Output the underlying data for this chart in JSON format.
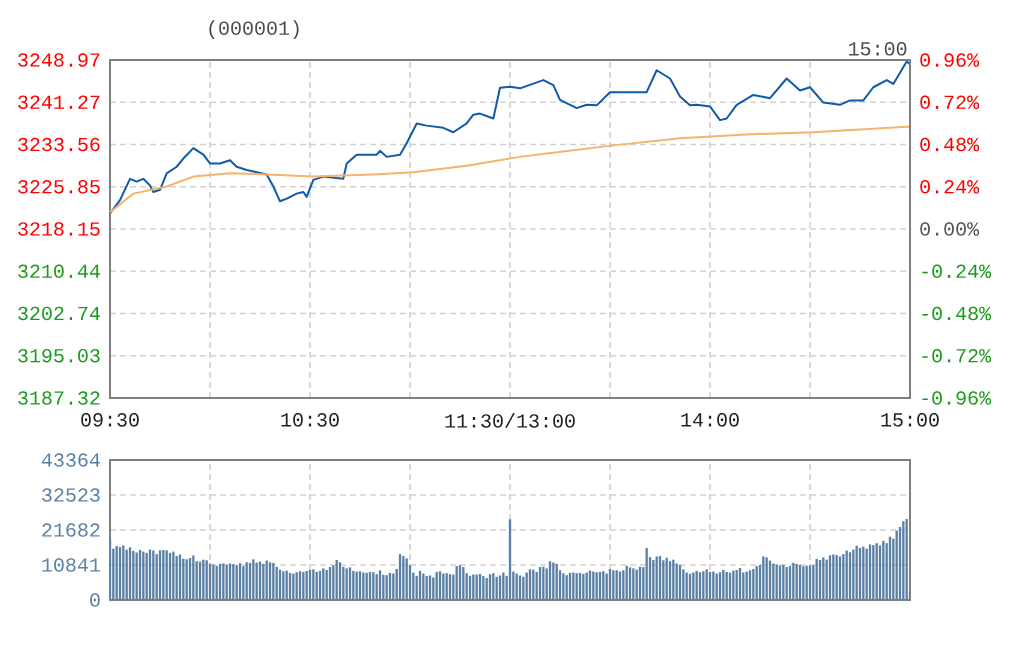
{
  "chart_data": [
    {
      "type": "line",
      "title": "(000001)",
      "annotations": [
        "15:00"
      ],
      "categories": [
        "09:30",
        null,
        null,
        null,
        null,
        null,
        null,
        null,
        null,
        null,
        null,
        null,
        null,
        null,
        null,
        null,
        null,
        null,
        null,
        null,
        null,
        null,
        null,
        null,
        null,
        null,
        null,
        null,
        null,
        null,
        null,
        null,
        null,
        null,
        null,
        null,
        null,
        null,
        null,
        null,
        null,
        null,
        null,
        null,
        null,
        null,
        null,
        null,
        null,
        null,
        null,
        null,
        null,
        null,
        null,
        null,
        null,
        null,
        null,
        null,
        "10:30",
        null,
        null,
        null,
        null,
        null,
        null,
        null,
        null,
        null,
        null,
        null,
        null,
        null,
        null,
        null,
        null,
        null,
        null,
        null,
        null,
        null,
        null,
        null,
        null,
        null,
        null,
        null,
        null,
        null,
        null,
        null,
        null,
        null,
        null,
        null,
        null,
        null,
        null,
        null,
        null,
        null,
        null,
        null,
        null,
        null,
        null,
        null,
        null,
        null,
        null,
        null,
        null,
        null,
        null,
        null,
        null,
        null,
        null,
        null,
        "11:30/13:00",
        null,
        null,
        null,
        null,
        null,
        null,
        null,
        null,
        null,
        null,
        null,
        null,
        null,
        null,
        null,
        null,
        null,
        null,
        null,
        null,
        null,
        null,
        null,
        null,
        null,
        null,
        null,
        null,
        null,
        null,
        null,
        null,
        null,
        null,
        null,
        null,
        null,
        null,
        null,
        null,
        null,
        null,
        null,
        null,
        null,
        null,
        null,
        null,
        null,
        null,
        null,
        null,
        null,
        null,
        null,
        null,
        null,
        null,
        null,
        "14:00",
        null,
        null,
        null,
        null,
        null,
        null,
        null,
        null,
        null,
        null,
        null,
        null,
        null,
        null,
        null,
        null,
        null,
        null,
        null,
        null,
        null,
        null,
        null,
        null,
        null,
        null,
        null,
        null,
        null,
        null,
        null,
        null,
        null,
        null,
        null,
        null,
        null,
        null,
        null,
        null,
        null,
        null,
        null,
        null,
        null,
        null,
        null,
        null,
        null,
        null,
        null,
        null,
        null,
        null,
        null,
        null,
        null,
        null,
        null,
        "15:00"
      ],
      "series": [
        {
          "color": "#0f5ba7",
          "values": [
            3221.0,
            null,
            null,
            3223.4,
            null,
            null,
            3227.3,
            null,
            3226.8,
            null,
            3227.3,
            null,
            3226.1,
            3224.9,
            null,
            3225.3,
            null,
            3228.3,
            null,
            null,
            3229.5,
            null,
            3231.0,
            null,
            null,
            3232.9,
            null,
            null,
            3231.7,
            null,
            3230.1,
            null,
            null,
            3230.1,
            null,
            null,
            3230.7,
            null,
            3229.5,
            null,
            null,
            3228.9,
            null,
            null,
            3228.5,
            null,
            null,
            3228.1,
            null,
            3225.9,
            null,
            3223.2,
            null,
            3223.7,
            null,
            null,
            3224.6,
            null,
            3224.9,
            3224.0,
            null,
            3227.1,
            null,
            null,
            3227.7,
            null,
            null,
            null,
            null,
            null,
            3227.3,
            3230.1,
            null,
            null,
            3231.7,
            null,
            null,
            null,
            null,
            null,
            3231.7,
            3232.4,
            null,
            3231.3,
            null,
            null,
            null,
            3231.7,
            null,
            3233.8,
            null,
            null,
            3237.4,
            null,
            null,
            3237.0,
            null,
            null,
            null,
            null,
            3236.6,
            null,
            null,
            3235.8,
            null,
            null,
            null,
            3237.4,
            null,
            3239.0,
            null,
            3239.2,
            null,
            null,
            null,
            3238.3,
            null,
            3243.9,
            null,
            null,
            3244.1,
            null,
            null,
            3243.8,
            null,
            null,
            null,
            null,
            null,
            null,
            3245.3,
            null,
            null,
            3244.4,
            null,
            3241.7,
            null,
            null,
            null,
            null,
            3240.2,
            null,
            null,
            3240.8,
            null,
            null,
            3240.7,
            null,
            null,
            null,
            3243.1,
            null,
            null,
            null,
            null,
            null,
            null,
            null,
            null,
            null,
            null,
            3243.1,
            null,
            null,
            3247.1,
            null,
            null,
            null,
            3245.6,
            null,
            null,
            3242.3,
            null,
            null,
            3240.7,
            null,
            3240.8,
            null,
            null,
            null,
            3240.5,
            null,
            null,
            3238.0,
            null,
            3238.3,
            null,
            null,
            3240.8,
            null,
            null,
            null,
            null,
            3242.6,
            null,
            null,
            null,
            null,
            3242.0,
            null,
            null,
            null,
            null,
            3245.6,
            null,
            null,
            null,
            3243.4,
            null,
            null,
            3244.0,
            null,
            null,
            null,
            3241.2,
            null,
            null,
            null,
            null,
            3240.8,
            null,
            null,
            3241.6,
            null,
            null,
            null,
            3241.6,
            null,
            null,
            3244.0,
            null,
            null,
            null,
            3245.3,
            null,
            3244.6,
            null,
            null,
            null,
            3248.7,
            3248.2
          ]
        },
        {
          "color": "#f5b36b",
          "values": [
            3221.2,
            null,
            null,
            null,
            null,
            null,
            null,
            3224.6,
            null,
            null,
            null,
            null,
            null,
            null,
            null,
            null,
            null,
            3225.9,
            null,
            null,
            null,
            null,
            null,
            null,
            null,
            3227.7,
            null,
            null,
            null,
            null,
            null,
            null,
            null,
            null,
            null,
            null,
            3228.3,
            null,
            null,
            null,
            null,
            null,
            null,
            null,
            null,
            null,
            null,
            3228.1,
            null,
            null,
            null,
            null,
            null,
            null,
            null,
            null,
            null,
            null,
            null,
            null,
            null,
            3227.7,
            null,
            null,
            null,
            null,
            null,
            null,
            null,
            null,
            null,
            null,
            null,
            null,
            null,
            null,
            null,
            null,
            null,
            3228.1,
            null,
            null,
            null,
            null,
            null,
            null,
            null,
            null,
            null,
            null,
            null,
            3228.5,
            null,
            null,
            null,
            null,
            null,
            null,
            null,
            null,
            null,
            null,
            null,
            null,
            null,
            null,
            null,
            3229.7,
            null,
            null,
            null,
            3230.1,
            null,
            null,
            null,
            null,
            null,
            null,
            null,
            null,
            null,
            null,
            null,
            3231.3,
            null,
            null,
            null,
            null,
            null,
            null,
            null,
            3231.9,
            null,
            null,
            null,
            null,
            null,
            null,
            null,
            null,
            null,
            null,
            null,
            null,
            null,
            null,
            null,
            null,
            null,
            null,
            null,
            3233.4,
            null,
            null,
            null,
            null,
            null,
            null,
            null,
            null,
            null,
            null,
            null,
            null,
            null,
            null,
            null,
            null,
            null,
            null,
            null,
            3234.7,
            null,
            null,
            null,
            null,
            null,
            null,
            null,
            null,
            null,
            null,
            null,
            null,
            null,
            null,
            null,
            null,
            null,
            null,
            null,
            3235.4,
            null,
            null,
            null,
            null,
            null,
            null,
            null,
            null,
            null,
            null,
            null,
            null,
            null,
            null,
            null,
            null,
            null,
            null,
            null,
            3235.8,
            null,
            null,
            null,
            null,
            null,
            null,
            null,
            null,
            null,
            null,
            null,
            null,
            null,
            null,
            null,
            null,
            null,
            null,
            null,
            null,
            null,
            null,
            null,
            null,
            null,
            null,
            null,
            3236.8,
            3236.8
          ]
        }
      ],
      "ylim": [
        3187.32,
        3248.97
      ],
      "yticks": [
        3187.32,
        3195.03,
        3202.74,
        3210.44,
        3218.15,
        3225.85,
        3233.56,
        3241.27,
        3248.97
      ],
      "y2lim": [
        -0.96,
        0.96
      ],
      "y2ticks": [
        {
          "value": -0.96,
          "label": "-0.96%"
        },
        {
          "value": -0.72,
          "label": "-0.72%"
        },
        {
          "value": -0.48,
          "label": "-0.48%"
        },
        {
          "value": -0.24,
          "label": "-0.24%"
        },
        {
          "value": 0,
          "label": "0.00%"
        },
        {
          "value": 0.24,
          "label": "0.24%"
        },
        {
          "value": 0.48,
          "label": "0.48%"
        },
        {
          "value": 0.72,
          "label": "0.72%"
        },
        {
          "value": 0.96,
          "label": "0.96%"
        }
      ],
      "grid": true
    },
    {
      "type": "bar",
      "color": "#5b80a5",
      "categories": [
        null,
        null,
        null,
        null,
        null,
        null,
        null,
        null,
        null,
        null,
        null,
        null,
        null,
        null,
        null,
        null,
        null,
        null,
        null,
        null,
        null,
        null,
        null,
        null,
        null,
        null,
        null,
        null,
        null,
        null,
        null,
        null,
        null,
        null,
        null,
        null,
        null,
        null,
        null,
        null,
        null,
        null,
        null,
        null,
        null,
        null,
        null,
        null,
        null,
        null,
        null,
        null,
        null,
        null,
        null,
        null,
        null,
        null,
        null,
        null,
        null,
        null,
        null,
        null,
        null,
        null,
        null,
        null,
        null,
        null,
        null,
        null,
        null,
        null,
        null,
        null,
        null,
        null,
        null,
        null,
        null,
        null,
        null,
        null,
        null,
        null,
        null,
        null,
        null,
        null,
        null,
        null,
        null,
        null,
        null,
        null,
        null,
        null,
        null,
        null,
        null,
        null,
        null,
        null,
        null,
        null,
        null,
        null,
        null,
        null,
        null,
        null,
        null,
        null,
        null,
        null,
        null,
        null,
        null,
        null,
        null,
        null,
        null,
        null,
        null,
        null,
        null,
        null,
        null,
        null,
        null,
        null,
        null,
        null,
        null,
        null,
        null,
        null,
        null,
        null,
        null,
        null,
        null,
        null,
        null,
        null,
        null,
        null,
        null,
        null,
        null,
        null,
        null,
        null,
        null,
        null,
        null,
        null,
        null,
        null,
        null,
        null,
        null,
        null,
        null,
        null,
        null,
        null,
        null,
        null,
        null,
        null,
        null,
        null,
        null,
        null,
        null,
        null,
        null,
        null,
        null,
        null,
        null,
        null,
        null,
        null,
        null,
        null,
        null,
        null,
        null,
        null,
        null,
        null,
        null,
        null,
        null,
        null,
        null,
        null,
        null,
        null,
        null,
        null,
        null,
        null,
        null,
        null,
        null,
        null,
        null,
        null,
        null,
        null,
        null,
        null,
        null,
        null,
        null,
        null,
        null,
        null,
        null,
        null,
        null,
        null,
        null,
        null,
        null,
        null,
        null,
        null,
        null,
        null,
        null,
        null,
        null,
        null,
        null,
        null,
        null
      ],
      "values": [
        18800,
        15900,
        16700,
        16400,
        16900,
        15600,
        16300,
        15200,
        14700,
        15500,
        15000,
        14600,
        15600,
        15300,
        14200,
        15400,
        15500,
        15400,
        14600,
        15000,
        13600,
        14100,
        12800,
        12600,
        13000,
        13800,
        12000,
        11900,
        12500,
        12300,
        11300,
        11000,
        10600,
        11200,
        11300,
        11000,
        11300,
        11100,
        10800,
        11400,
        10500,
        11700,
        11500,
        12600,
        11600,
        11900,
        11200,
        12200,
        11700,
        11500,
        10300,
        9400,
        8900,
        9100,
        8400,
        8200,
        8600,
        8900,
        8700,
        9000,
        9300,
        9500,
        8700,
        9000,
        9800,
        9300,
        10200,
        10700,
        12400,
        11700,
        10300,
        9800,
        10100,
        9000,
        8800,
        8900,
        8500,
        8400,
        8700,
        8600,
        8000,
        9200,
        7800,
        7700,
        8400,
        8200,
        9600,
        14200,
        13600,
        12900,
        10800,
        8500,
        7500,
        9000,
        8200,
        7400,
        7600,
        7000,
        8700,
        8900,
        8200,
        8300,
        8000,
        7900,
        10500,
        10800,
        10200,
        8300,
        7500,
        7900,
        7900,
        8100,
        7400,
        6800,
        8000,
        8300,
        7200,
        7600,
        8500,
        7500,
        25000,
        8800,
        8200,
        7600,
        7200,
        8500,
        9500,
        9400,
        8700,
        10200,
        10300,
        9800,
        12000,
        11600,
        11200,
        9200,
        8300,
        7700,
        8400,
        8500,
        8300,
        8400,
        8100,
        8500,
        9100,
        8800,
        8600,
        8700,
        8900,
        8200,
        9600,
        9200,
        9200,
        8800,
        9200,
        10600,
        10100,
        9800,
        9400,
        10300,
        10200,
        16100,
        13300,
        12400,
        13500,
        13600,
        12300,
        13100,
        12000,
        12500,
        11300,
        10900,
        9500,
        8500,
        8100,
        8500,
        9000,
        8600,
        8900,
        9500,
        8700,
        8800,
        8200,
        8600,
        9300,
        8700,
        8500,
        9100,
        9300,
        9900,
        8500,
        8800,
        9200,
        9600,
        10500,
        10900,
        13500,
        13200,
        12200,
        11300,
        11000,
        10700,
        10900,
        10200,
        10500,
        11500,
        11200,
        10900,
        10500,
        10600,
        10700,
        10800,
        12700,
        12400,
        13200,
        12500,
        13800,
        14100,
        13900,
        13500,
        14200,
        15300,
        14800,
        15600,
        16800,
        16100,
        16500,
        15900,
        17200,
        17000,
        17600,
        16900,
        18300,
        17600,
        19600,
        19000,
        21500,
        22600,
        24400,
        25100,
        2700
      ],
      "ylim": [
        0,
        43364
      ],
      "yticks": [
        0,
        10841,
        21682,
        32523,
        43364
      ],
      "grid": true,
      "tick_labels": "y"
    }
  ]
}
